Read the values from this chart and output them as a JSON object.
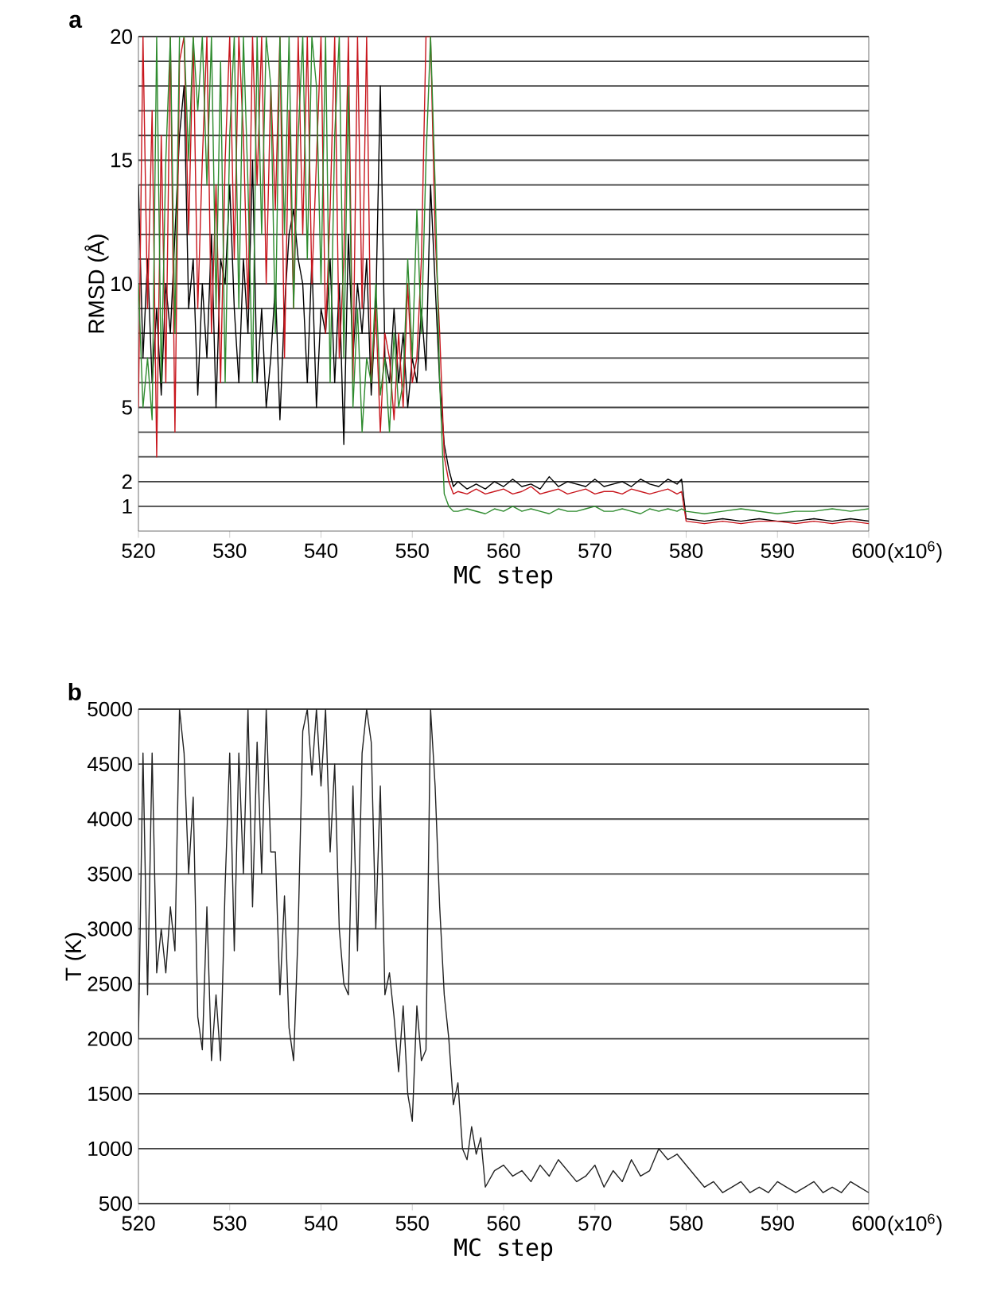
{
  "chart_data": [
    {
      "type": "line",
      "title": "a",
      "xlabel": "MC step",
      "ylabel": "RMSD (Å)",
      "annotations": [
        "(x10$^{6}$)"
      ],
      "grid": "y",
      "marker": "none",
      "line_style": "solid",
      "xlim": [
        520,
        600
      ],
      "xticks": [
        520,
        530,
        540,
        550,
        560,
        570,
        580,
        590,
        600
      ],
      "ylim": [
        0,
        20
      ],
      "yticks": [
        1,
        2,
        {
          "value": 3,
          "label": null
        },
        {
          "value": 4,
          "label": null
        },
        5,
        {
          "value": 6,
          "label": null
        },
        {
          "value": 7,
          "label": null
        },
        {
          "value": 8,
          "label": null
        },
        {
          "value": 9,
          "label": null
        },
        10,
        {
          "value": 11,
          "label": null
        },
        {
          "value": 12,
          "label": null
        },
        {
          "value": 13,
          "label": null
        },
        {
          "value": 14,
          "label": null
        },
        15,
        {
          "value": 16,
          "label": null
        },
        {
          "value": 17,
          "label": null
        },
        {
          "value": 18,
          "label": null
        },
        {
          "value": 19,
          "label": null
        },
        20
      ],
      "x": [
        520,
        520.5,
        521,
        521.5,
        522,
        522.5,
        523,
        523.5,
        524,
        524.5,
        525,
        525.5,
        526,
        526.5,
        527,
        527.5,
        528,
        528.5,
        529,
        529.5,
        530,
        530.5,
        531,
        531.5,
        532,
        532.5,
        533,
        533.5,
        534,
        534.5,
        535,
        535.5,
        536,
        536.5,
        537,
        537.5,
        538,
        538.5,
        539,
        539.5,
        540,
        540.5,
        541,
        541.5,
        542,
        542.5,
        543,
        543.5,
        544,
        544.5,
        545,
        545.5,
        546,
        546.5,
        547,
        547.5,
        548,
        548.5,
        549,
        549.5,
        550,
        550.5,
        551,
        551.5,
        552,
        552.5,
        553,
        553.5,
        554,
        554.5,
        555,
        556,
        557,
        558,
        559,
        560,
        561,
        562,
        563,
        564,
        565,
        566,
        567,
        568,
        569,
        570,
        571,
        572,
        573,
        574,
        575,
        576,
        577,
        578,
        579,
        579.5,
        580,
        582,
        584,
        586,
        588,
        590,
        592,
        594,
        596,
        598,
        600
      ],
      "series": [
        {
          "color": "#000000",
          "values": [
            14,
            7,
            11,
            6,
            9,
            5.5,
            10,
            8,
            12,
            16,
            18,
            9,
            11,
            5.5,
            10,
            7,
            12,
            5,
            11,
            10,
            14,
            9,
            6,
            11,
            8,
            15,
            6,
            9,
            5,
            7,
            10,
            4.5,
            9,
            12,
            13,
            11,
            10,
            6,
            11,
            5,
            9,
            8,
            11,
            6,
            10,
            3.5,
            12,
            7,
            10,
            8,
            11,
            5.5,
            9,
            18,
            7,
            6,
            9,
            6,
            8,
            5,
            7,
            6,
            9,
            6.5,
            14,
            10,
            6,
            3.5,
            2.5,
            1.8,
            2,
            1.7,
            1.9,
            1.7,
            2,
            1.8,
            2.1,
            1.8,
            1.9,
            1.7,
            2.2,
            1.8,
            2,
            1.9,
            1.8,
            2.1,
            1.8,
            1.9,
            2,
            1.8,
            2.1,
            1.9,
            1.8,
            2.1,
            1.9,
            2.1,
            0.5,
            0.4,
            0.5,
            0.4,
            0.5,
            0.4,
            0.4,
            0.5,
            0.4,
            0.5,
            0.4
          ]
        },
        {
          "color": "#c8161d",
          "values": [
            5,
            20,
            9,
            17,
            3,
            16,
            6,
            20,
            4,
            19,
            20,
            12,
            20,
            9,
            15,
            20,
            8,
            14,
            6,
            15,
            20,
            11,
            20,
            16,
            9,
            20,
            14,
            20,
            10,
            18,
            13,
            20,
            7,
            17,
            9,
            20,
            12,
            20,
            10,
            15,
            20,
            8,
            13,
            20,
            7,
            11,
            20,
            6,
            20,
            9,
            20,
            6,
            9,
            4,
            8,
            7,
            4.5,
            8,
            5,
            10,
            6,
            7,
            11,
            20,
            20,
            12,
            8,
            3,
            2,
            1.5,
            1.6,
            1.5,
            1.7,
            1.5,
            1.6,
            1.7,
            1.5,
            1.6,
            1.8,
            1.5,
            1.6,
            1.7,
            1.5,
            1.6,
            1.7,
            1.5,
            1.6,
            1.6,
            1.5,
            1.7,
            1.6,
            1.5,
            1.6,
            1.7,
            1.5,
            1.6,
            0.4,
            0.3,
            0.4,
            0.3,
            0.4,
            0.4,
            0.3,
            0.4,
            0.3,
            0.4,
            0.3
          ]
        },
        {
          "color": "#2e8b2e",
          "values": [
            10,
            5,
            7,
            4.5,
            20,
            6,
            15,
            20,
            8,
            20,
            20,
            15,
            20,
            17,
            20,
            14,
            20,
            9,
            19,
            6,
            16,
            20,
            9,
            20,
            14,
            6,
            20,
            12,
            20,
            18,
            8,
            20,
            12,
            20,
            9,
            16,
            20,
            11,
            20,
            18,
            10,
            20,
            6,
            16,
            20,
            7,
            18,
            5,
            9,
            4,
            7,
            6,
            10,
            5.5,
            7,
            4,
            8,
            5,
            6,
            11,
            7,
            13,
            8,
            15,
            20,
            14,
            6,
            1.5,
            1,
            0.8,
            0.8,
            0.9,
            0.8,
            0.7,
            0.9,
            0.8,
            1,
            0.8,
            0.9,
            0.8,
            0.7,
            0.9,
            0.8,
            0.8,
            0.9,
            1,
            0.8,
            0.8,
            0.9,
            0.8,
            0.7,
            0.9,
            0.8,
            0.9,
            0.8,
            0.9,
            0.8,
            0.7,
            0.8,
            0.9,
            0.8,
            0.7,
            0.8,
            0.8,
            0.9,
            0.8,
            0.9
          ]
        }
      ]
    },
    {
      "type": "line",
      "title": "b",
      "xlabel": "MC step",
      "ylabel": "T (K)",
      "annotations": [
        "(x10$^{6}$)"
      ],
      "grid": "y",
      "marker": "none",
      "line_style": "solid",
      "xlim": [
        520,
        600
      ],
      "xticks": [
        520,
        530,
        540,
        550,
        560,
        570,
        580,
        590,
        600
      ],
      "ylim": [
        500,
        5000
      ],
      "yticks": [
        500,
        1000,
        1500,
        2000,
        2500,
        3000,
        3500,
        4000,
        4500,
        5000
      ],
      "x": [
        520,
        520.5,
        521,
        521.5,
        522,
        522.5,
        523,
        523.5,
        524,
        524.5,
        525,
        525.5,
        526,
        526.5,
        527,
        527.5,
        528,
        528.5,
        529,
        529.5,
        530,
        530.5,
        531,
        531.5,
        532,
        532.5,
        533,
        533.5,
        534,
        534.5,
        535,
        535.5,
        536,
        536.5,
        537,
        537.5,
        538,
        538.5,
        539,
        539.5,
        540,
        540.5,
        541,
        541.5,
        542,
        542.5,
        543,
        543.5,
        544,
        544.5,
        545,
        545.5,
        546,
        546.5,
        547,
        547.5,
        548,
        548.5,
        549,
        549.5,
        550,
        550.5,
        551,
        551.5,
        552,
        552.5,
        553,
        553.5,
        554,
        554.5,
        555,
        555.5,
        556,
        556.5,
        557,
        557.5,
        558,
        559,
        560,
        561,
        562,
        563,
        564,
        565,
        566,
        567,
        568,
        569,
        570,
        571,
        572,
        573,
        574,
        575,
        576,
        577,
        578,
        579,
        580,
        581,
        582,
        583,
        584,
        585,
        586,
        587,
        588,
        589,
        590,
        591,
        592,
        593,
        594,
        595,
        596,
        597,
        598,
        599,
        600
      ],
      "series": [
        {
          "color": "#222222",
          "values": [
            2000,
            4600,
            2400,
            4600,
            2600,
            3000,
            2600,
            3200,
            2800,
            5000,
            4600,
            3500,
            4200,
            2200,
            1900,
            3200,
            1800,
            2400,
            1800,
            3400,
            4600,
            2800,
            4600,
            3500,
            5000,
            3200,
            4700,
            3500,
            5000,
            3700,
            3700,
            2400,
            3300,
            2100,
            1800,
            3000,
            4800,
            5000,
            4400,
            5000,
            4300,
            5000,
            3700,
            4500,
            3000,
            2500,
            2400,
            4300,
            2800,
            4600,
            5000,
            4700,
            3000,
            4300,
            2400,
            2600,
            2200,
            1700,
            2300,
            1500,
            1250,
            2300,
            1800,
            1900,
            5000,
            4300,
            3200,
            2400,
            2000,
            1400,
            1600,
            1000,
            900,
            1200,
            950,
            1100,
            650,
            800,
            850,
            750,
            800,
            700,
            850,
            750,
            900,
            800,
            700,
            750,
            850,
            650,
            800,
            700,
            900,
            750,
            800,
            1000,
            900,
            950,
            850,
            750,
            650,
            700,
            600,
            650,
            700,
            600,
            650,
            600,
            700,
            650,
            600,
            650,
            700,
            600,
            650,
            600,
            700,
            650,
            600
          ]
        }
      ]
    }
  ]
}
